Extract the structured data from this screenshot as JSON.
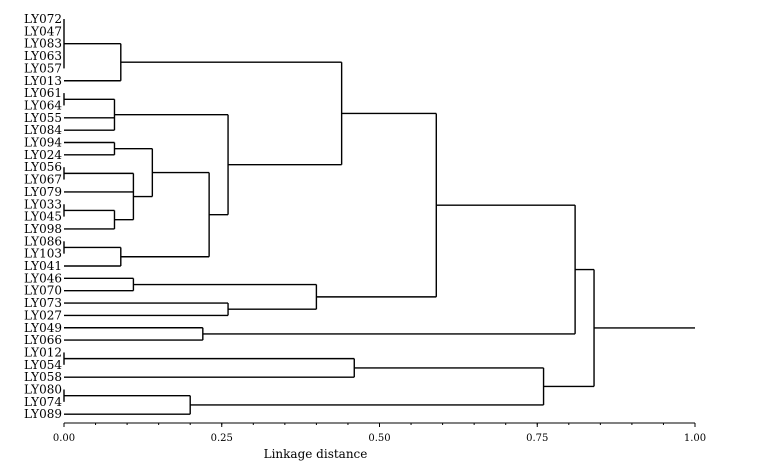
{
  "chart_data": {
    "type": "dendrogram",
    "orientation": "horizontal",
    "xlabel": "Linkage distance",
    "xlim": [
      0,
      1
    ],
    "ticks": [
      {
        "value": 0.0,
        "label": "0.00"
      },
      {
        "value": 0.25,
        "label": "0.25"
      },
      {
        "value": 0.5,
        "label": "0.50"
      },
      {
        "value": 0.75,
        "label": "0.75"
      },
      {
        "value": 1.0,
        "label": "1.00"
      }
    ],
    "leaves": [
      "LY072",
      "LY047",
      "LY083",
      "LY063",
      "LY057",
      "LY013",
      "LY061",
      "LY064",
      "LY055",
      "LY084",
      "LY094",
      "LY024",
      "LY056",
      "LY067",
      "LY079",
      "LY033",
      "LY045",
      "LY098",
      "LY086",
      "LY103",
      "LY041",
      "LY046",
      "LY070",
      "LY073",
      "LY027",
      "LY049",
      "LY066",
      "LY012",
      "LY054",
      "LY058",
      "LY080",
      "LY074",
      "LY089"
    ],
    "merges": [
      {
        "id": "c1",
        "children": [
          "LY072",
          "LY047",
          "LY083",
          "LY063",
          "LY057"
        ],
        "height": 0.0
      },
      {
        "id": "c2",
        "children": [
          "c1",
          "LY013"
        ],
        "height": 0.09
      },
      {
        "id": "c3",
        "children": [
          "LY061",
          "LY064"
        ],
        "height": 0.0
      },
      {
        "id": "c4",
        "children": [
          "c3",
          "LY055",
          "LY084"
        ],
        "height": 0.08
      },
      {
        "id": "c5",
        "children": [
          "LY094",
          "LY024"
        ],
        "height": 0.08
      },
      {
        "id": "c6",
        "children": [
          "LY056",
          "LY067"
        ],
        "height": 0.0
      },
      {
        "id": "c7",
        "children": [
          "LY033",
          "LY045"
        ],
        "height": 0.0
      },
      {
        "id": "c8",
        "children": [
          "c7",
          "LY098"
        ],
        "height": 0.08
      },
      {
        "id": "c9",
        "children": [
          "c6",
          "LY079",
          "c8"
        ],
        "height": 0.11
      },
      {
        "id": "c10",
        "children": [
          "c5",
          "c9"
        ],
        "height": 0.14
      },
      {
        "id": "c11",
        "children": [
          "LY086",
          "LY103"
        ],
        "height": 0.0
      },
      {
        "id": "c12",
        "children": [
          "c11",
          "LY041"
        ],
        "height": 0.09
      },
      {
        "id": "c13",
        "children": [
          "c10",
          "c12"
        ],
        "height": 0.23
      },
      {
        "id": "c14",
        "children": [
          "c4",
          "c13"
        ],
        "height": 0.26
      },
      {
        "id": "c15",
        "children": [
          "c2",
          "c14"
        ],
        "height": 0.44
      },
      {
        "id": "c16",
        "children": [
          "LY046",
          "LY070"
        ],
        "height": 0.11
      },
      {
        "id": "c17",
        "children": [
          "LY073",
          "LY027"
        ],
        "height": 0.26
      },
      {
        "id": "c18",
        "children": [
          "c16",
          "c17"
        ],
        "height": 0.4
      },
      {
        "id": "c19",
        "children": [
          "c15",
          "c18"
        ],
        "height": 0.59
      },
      {
        "id": "c20",
        "children": [
          "LY049",
          "LY066"
        ],
        "height": 0.22
      },
      {
        "id": "c21",
        "children": [
          "c19",
          "c20"
        ],
        "height": 0.81
      },
      {
        "id": "c22",
        "children": [
          "LY012",
          "LY054"
        ],
        "height": 0.0
      },
      {
        "id": "c23",
        "children": [
          "c22",
          "LY058"
        ],
        "height": 0.46
      },
      {
        "id": "c24",
        "children": [
          "LY080",
          "LY074"
        ],
        "height": 0.0
      },
      {
        "id": "c25",
        "children": [
          "c24",
          "LY089"
        ],
        "height": 0.2
      },
      {
        "id": "c26",
        "children": [
          "c23",
          "c25"
        ],
        "height": 0.76
      },
      {
        "id": "c27",
        "children": [
          "c21",
          "c26"
        ],
        "height": 0.84
      }
    ],
    "root_extends_to": 1.0
  }
}
